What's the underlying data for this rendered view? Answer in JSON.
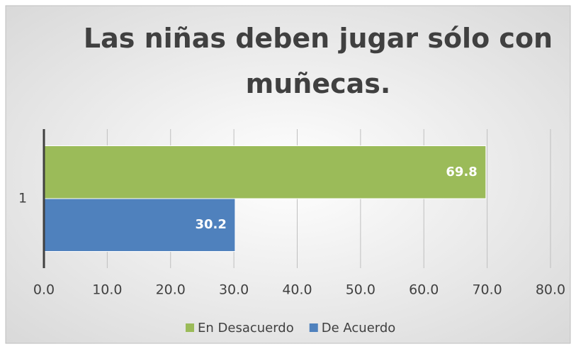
{
  "chart_data": {
    "type": "bar",
    "orientation": "horizontal",
    "title": "Las niñas deben jugar sólo con muñecas.",
    "categories": [
      "1"
    ],
    "series": [
      {
        "name": "En Desacuerdo",
        "color": "#9bbb59",
        "values": [
          69.8
        ]
      },
      {
        "name": "De Acuerdo",
        "color": "#4f81bd",
        "values": [
          30.2
        ]
      }
    ],
    "xlim": [
      0,
      80
    ],
    "xticks": [
      {
        "value": 0,
        "label": "0.0"
      },
      {
        "value": 10,
        "label": "10.0"
      },
      {
        "value": 20,
        "label": "20.0"
      },
      {
        "value": 30,
        "label": "30.0"
      },
      {
        "value": 40,
        "label": "40.0"
      },
      {
        "value": 50,
        "label": "50.0"
      },
      {
        "value": 60,
        "label": "60.0"
      },
      {
        "value": 70,
        "label": "70.0"
      },
      {
        "value": 80,
        "label": "80.0"
      }
    ],
    "grid": true,
    "legend": "bottom"
  }
}
